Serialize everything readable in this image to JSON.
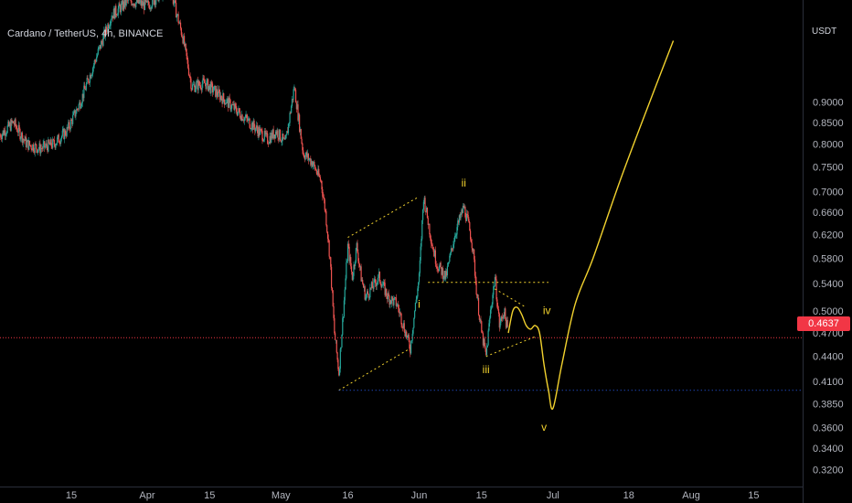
{
  "header": {
    "symbol": "Cardano / TetherUS, 4h, BINANCE",
    "currency": "USDT"
  },
  "price_badge": "0.4637",
  "colors": {
    "background": "#000000",
    "up": "#26a69a",
    "down": "#ef5350",
    "projection": "#f2d22e",
    "support": "#2962ff",
    "current_price": "#f23645"
  },
  "chart_data": {
    "type": "candlestick",
    "title": "Cardano / TetherUS, 4h, BINANCE",
    "ylabel": "USDT",
    "y_scale": "log",
    "ylim": [
      0.305,
      1.2
    ],
    "y_ticks": [
      "0.9000",
      "0.8500",
      "0.8000",
      "0.7500",
      "0.7000",
      "0.6600",
      "0.6200",
      "0.5800",
      "0.5400",
      "0.5000",
      "0.4700",
      "0.4400",
      "0.4100",
      "0.3850",
      "0.3600",
      "0.3400",
      "0.3200"
    ],
    "x_ticks": [
      "15",
      "Apr",
      "15",
      "May",
      "16",
      "Jun",
      "15",
      "Jul",
      "18",
      "Aug",
      "15"
    ],
    "x_tick_days": [
      -17,
      0,
      14,
      30,
      45,
      61,
      75,
      91,
      108,
      122,
      136
    ],
    "x_range_days": [
      -33,
      147
    ],
    "x_origin_label": "Apr",
    "current_price": 0.4637,
    "support_level": 0.4,
    "price_path": [
      [
        -33,
        0.82
      ],
      [
        -30,
        0.85
      ],
      [
        -27,
        0.8
      ],
      [
        -24,
        0.79
      ],
      [
        -21,
        0.8
      ],
      [
        -18,
        0.83
      ],
      [
        -15,
        0.9
      ],
      [
        -12,
        1.0
      ],
      [
        -8,
        1.15
      ],
      [
        -4,
        1.2
      ],
      [
        0,
        1.18
      ],
      [
        5,
        1.25
      ],
      [
        8,
        1.08
      ],
      [
        10,
        0.94
      ],
      [
        13,
        0.95
      ],
      [
        16,
        0.92
      ],
      [
        19,
        0.89
      ],
      [
        21,
        0.87
      ],
      [
        24,
        0.84
      ],
      [
        27,
        0.81
      ],
      [
        29,
        0.83
      ],
      [
        31,
        0.8
      ],
      [
        33,
        0.94
      ],
      [
        35,
        0.78
      ],
      [
        37,
        0.76
      ],
      [
        39,
        0.72
      ],
      [
        40,
        0.66
      ],
      [
        41,
        0.58
      ],
      [
        42,
        0.47
      ],
      [
        43,
        0.42
      ],
      [
        44,
        0.5
      ],
      [
        45,
        0.6
      ],
      [
        46,
        0.55
      ],
      [
        47,
        0.6
      ],
      [
        48,
        0.55
      ],
      [
        49,
        0.52
      ],
      [
        50,
        0.53
      ],
      [
        52,
        0.55
      ],
      [
        54,
        0.52
      ],
      [
        56,
        0.51
      ],
      [
        58,
        0.47
      ],
      [
        59,
        0.45
      ],
      [
        60,
        0.5
      ],
      [
        61,
        0.55
      ],
      [
        62,
        0.69
      ],
      [
        64,
        0.6
      ],
      [
        65,
        0.57
      ],
      [
        67,
        0.55
      ],
      [
        69,
        0.62
      ],
      [
        71,
        0.67
      ],
      [
        72,
        0.64
      ],
      [
        73,
        0.6
      ],
      [
        74,
        0.52
      ],
      [
        75,
        0.47
      ],
      [
        76,
        0.44
      ],
      [
        77,
        0.5
      ],
      [
        78,
        0.55
      ],
      [
        79,
        0.48
      ],
      [
        80,
        0.5
      ],
      [
        81,
        0.47
      ]
    ],
    "wave_labels": [
      "i",
      "ii",
      "iii",
      "iv",
      "v"
    ],
    "wave_points": [
      {
        "label": "i",
        "day": 61,
        "price": 0.51
      },
      {
        "label": "ii",
        "day": 71,
        "price": 0.71
      },
      {
        "label": "iii",
        "day": 76,
        "price": 0.435
      },
      {
        "label": "iv",
        "day": 88,
        "price": 0.502
      },
      {
        "label": "v",
        "day": 89,
        "price": 0.37
      }
    ],
    "channel_1": {
      "upper": [
        [
          45,
          0.615
        ],
        [
          61,
          0.69
        ]
      ],
      "lower": [
        [
          43,
          0.4
        ],
        [
          59,
          0.45
        ]
      ]
    },
    "channel_2": {
      "upper": [
        [
          78,
          0.532
        ],
        [
          85,
          0.505
        ]
      ],
      "lower": [
        [
          76,
          0.44
        ],
        [
          87,
          0.465
        ]
      ]
    },
    "horizontal_dotted": {
      "from": 63,
      "to": 90,
      "price": 0.542
    },
    "projection": [
      [
        81,
        0.47
      ],
      [
        82,
        0.5
      ],
      [
        83,
        0.505
      ],
      [
        84,
        0.495
      ],
      [
        85,
        0.48
      ],
      [
        86,
        0.475
      ],
      [
        87,
        0.48
      ],
      [
        88,
        0.47
      ],
      [
        89,
        0.43
      ],
      [
        90,
        0.4
      ],
      [
        91,
        0.38
      ],
      [
        93,
        0.43
      ],
      [
        96,
        0.51
      ],
      [
        100,
        0.58
      ],
      [
        106,
        0.72
      ],
      [
        112,
        0.88
      ],
      [
        118,
        1.07
      ]
    ]
  }
}
